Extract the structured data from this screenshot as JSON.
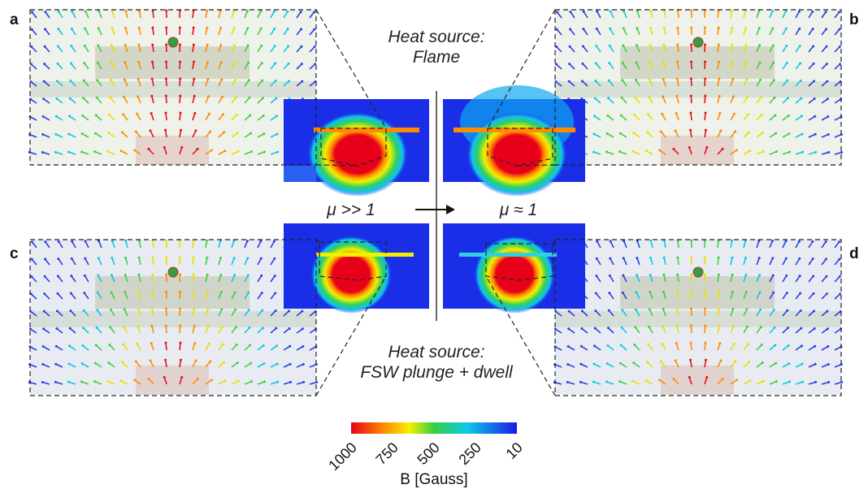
{
  "panels": {
    "a": "a",
    "b": "b",
    "c": "c",
    "d": "d"
  },
  "top_caption": {
    "line1": "Heat source:",
    "line2": "Flame"
  },
  "bottom_caption": {
    "line1": "Heat source:",
    "line2": "FSW plunge + dwell"
  },
  "left_condition": "μ >> 1",
  "right_condition": "μ ≈ 1",
  "colorbar": {
    "ticks": [
      1000,
      750,
      500,
      250,
      10
    ],
    "label": "B [Gauss]"
  }
}
